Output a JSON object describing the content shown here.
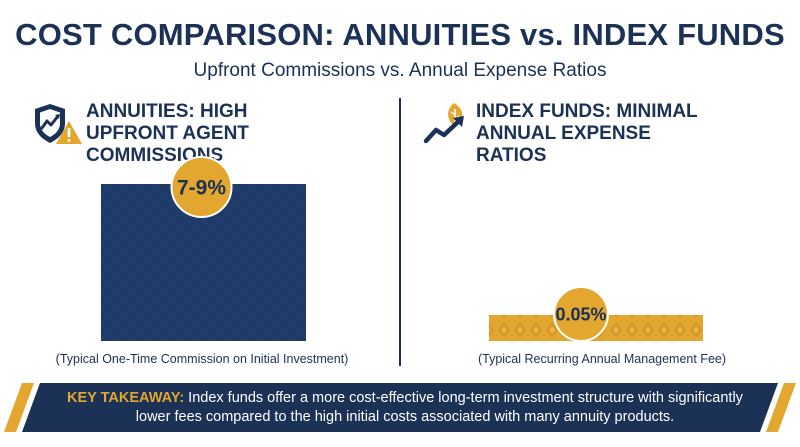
{
  "header": {
    "title": "COST COMPARISON: ANNUITIES vs. INDEX FUNDS",
    "subtitle": "Upfront Commissions vs. Annual Expense Ratios"
  },
  "panels": [
    {
      "heading": "ANNUITIES: HIGH UPFRONT AGENT COMMISSIONS",
      "icon": "shield-chart-warning-icon",
      "caption": "(Typical One-Time Commission on Initial Investment)"
    },
    {
      "heading": "INDEX FUNDS: MINIMAL ANNUAL EXPENSE RATIOS",
      "icon": "leaf-growth-arrow-icon",
      "caption": "(Typical Recurring Annual Management Fee)"
    }
  ],
  "chart_data": {
    "type": "bar",
    "categories": [
      "ANNUITIES: HIGH UPFRONT AGENT COMMISSIONS",
      "INDEX FUNDS: MINIMAL ANNUAL EXPENSE RATIOS"
    ],
    "values": [
      8,
      0.05
    ],
    "value_labels": [
      "7-9%",
      "0.05%"
    ],
    "title": "COST COMPARISON: ANNUITIES vs. INDEX FUNDS",
    "subtitle": "Upfront Commissions vs. Annual Expense Ratios",
    "grid": false,
    "legend": "none"
  },
  "takeaway": {
    "label": "KEY TAKEAWAY:",
    "text": " Index funds offer a more cost-effective long-term investment structure with significantly lower fees compared to the high initial costs associated with many annuity products."
  },
  "colors": {
    "navy": "#1b3156",
    "gold": "#e3a72f",
    "white": "#ffffff"
  }
}
